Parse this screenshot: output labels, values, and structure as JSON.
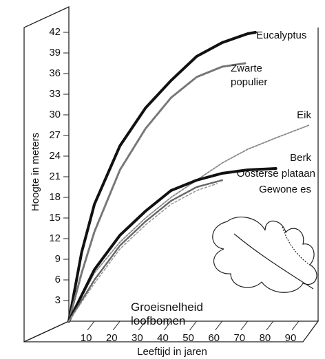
{
  "chart_data": {
    "type": "line",
    "title": "Groeisnelheid loofbomen",
    "y_label": "Hoogte in meters",
    "x_label": "Leeftijd in jaren",
    "xlim": [
      0,
      97
    ],
    "ylim": [
      0,
      45
    ],
    "xticks": [
      10,
      20,
      30,
      40,
      50,
      60,
      70,
      80,
      90
    ],
    "yticks": [
      3,
      6,
      9,
      12,
      15,
      18,
      21,
      24,
      27,
      30,
      33,
      36,
      39,
      42
    ],
    "series": [
      {
        "name": "Eucalyptus",
        "color": "#111111",
        "x": [
          0,
          5,
          10,
          20,
          30,
          40,
          50,
          60,
          70,
          73
        ],
        "values": [
          0,
          10,
          17,
          25.5,
          31,
          35,
          38.5,
          40.5,
          41.8,
          42
        ]
      },
      {
        "name": "Zwarte populier",
        "color": "#777777",
        "x": [
          0,
          5,
          10,
          20,
          30,
          40,
          50,
          60,
          69
        ],
        "values": [
          0,
          7,
          13,
          22,
          28,
          32.5,
          35.5,
          37,
          37.5
        ]
      },
      {
        "name": "Eik",
        "color": "#888888",
        "x": [
          0,
          10,
          20,
          30,
          40,
          50,
          60,
          70,
          80,
          94
        ],
        "values": [
          0,
          7,
          11.5,
          15,
          18,
          20.5,
          23,
          25,
          26.5,
          28.5
        ]
      },
      {
        "name": "Berk",
        "color": "#111111",
        "x": [
          0,
          10,
          20,
          30,
          40,
          50,
          60,
          70,
          81
        ],
        "values": [
          0,
          7.5,
          12.5,
          16,
          19,
          20.5,
          21.5,
          22,
          22.2
        ]
      },
      {
        "name": "Oosterse plataan",
        "color": "#666666",
        "x": [
          0,
          10,
          20,
          30,
          40,
          50,
          60
        ],
        "values": [
          0,
          6,
          11,
          14.5,
          17.5,
          19.5,
          20.5
        ]
      },
      {
        "name": "Gewone es",
        "color": "#999999",
        "x": [
          0,
          10,
          20,
          30,
          40,
          50,
          58
        ],
        "values": [
          0,
          5.5,
          10.5,
          14,
          17,
          19,
          20
        ]
      }
    ]
  }
}
